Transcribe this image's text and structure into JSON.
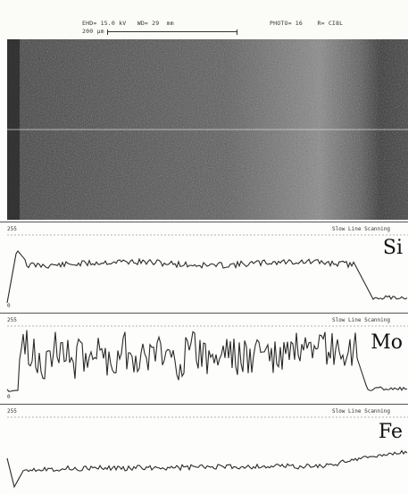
{
  "header": {
    "line1_left": "EHD= 15.0 kV   WD= 29  mm",
    "line1_right": "PHOTO= 16    R= CI8L",
    "scale_label": "200 μm"
  },
  "image": {
    "description_icon": "sem-micrograph"
  },
  "panels": [
    {
      "element": "Si",
      "top_value": "255",
      "bottom_value": "0",
      "mode": "Slow Line Scanning"
    },
    {
      "element": "Mo",
      "top_value": "255",
      "bottom_value": "0",
      "mode": "Slow Line Scanning"
    },
    {
      "element": "Fe",
      "top_value": "255",
      "bottom_value": "",
      "mode": "Slow Line Scanning"
    }
  ],
  "colors": {
    "trace": "#2a2a2a",
    "background": "#fdfdfb"
  }
}
